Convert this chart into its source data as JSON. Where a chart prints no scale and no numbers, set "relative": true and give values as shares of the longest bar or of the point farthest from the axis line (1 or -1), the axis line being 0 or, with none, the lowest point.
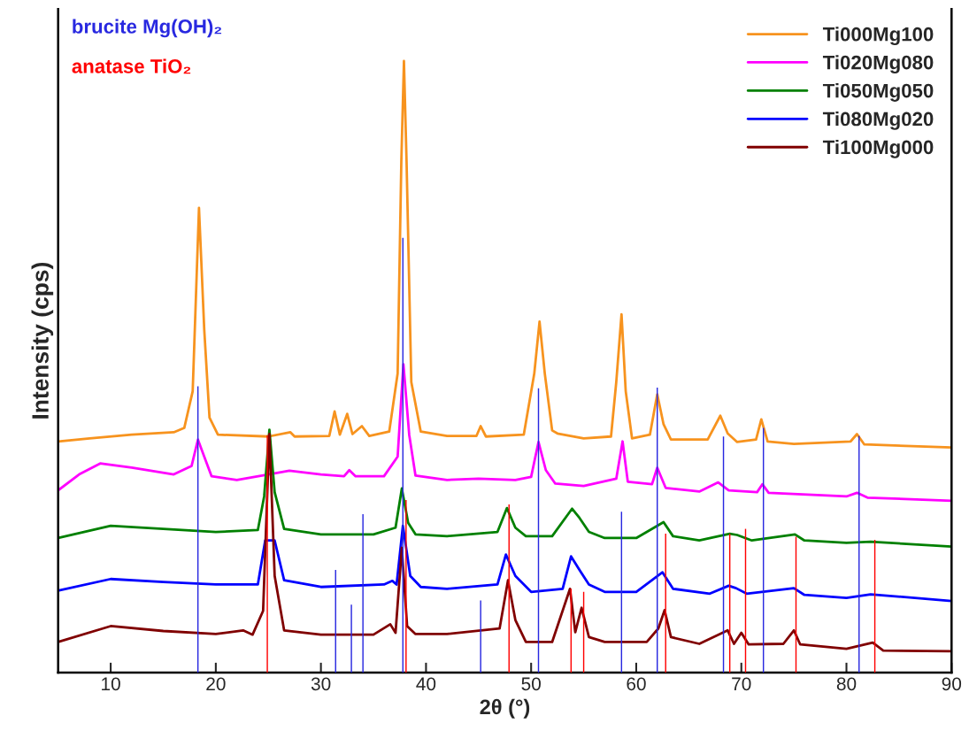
{
  "chart_data": {
    "type": "line",
    "xlabel": "2θ (°)",
    "ylabel": "Intensity (cps)",
    "relative": true,
    "xlim": [
      5,
      90
    ],
    "xticks": [
      10,
      20,
      30,
      40,
      50,
      60,
      70,
      80,
      90
    ],
    "legend": "top right",
    "grid": false,
    "tick_labels": "x",
    "series": [
      {
        "name": "Ti000Mg100",
        "color": "#f7931e",
        "x": [
          5,
          8,
          12,
          16,
          17,
          17.8,
          18.4,
          18.9,
          19.4,
          20.2,
          25,
          27.1,
          27.5,
          30.8,
          31.3,
          31.8,
          32.5,
          33,
          33.9,
          34.6,
          36.5,
          37.3,
          37.65,
          37.9,
          38.15,
          38.6,
          39.5,
          42,
          44.8,
          45.2,
          45.7,
          49.3,
          50.3,
          50.8,
          51.3,
          52,
          52.5,
          55,
          57.6,
          58.1,
          58.6,
          59.0,
          59.6,
          61.3,
          62.0,
          62.6,
          63.3,
          66.8,
          68.0,
          68.7,
          69.6,
          71.4,
          71.9,
          72.5,
          75,
          80.4,
          81.0,
          81.7,
          90
        ],
        "values": [
          0.378,
          0.383,
          0.389,
          0.393,
          0.4,
          0.46,
          0.76,
          0.561,
          0.417,
          0.389,
          0.386,
          0.393,
          0.386,
          0.387,
          0.427,
          0.389,
          0.423,
          0.39,
          0.403,
          0.387,
          0.394,
          0.489,
          0.835,
          1.0,
          0.835,
          0.475,
          0.394,
          0.387,
          0.387,
          0.403,
          0.386,
          0.389,
          0.489,
          0.574,
          0.489,
          0.396,
          0.391,
          0.383,
          0.386,
          0.475,
          0.586,
          0.46,
          0.383,
          0.389,
          0.455,
          0.406,
          0.381,
          0.381,
          0.42,
          0.391,
          0.377,
          0.381,
          0.414,
          0.378,
          0.374,
          0.378,
          0.39,
          0.373,
          0.368
        ]
      },
      {
        "name": "Ti020Mg080",
        "color": "#ff00ff",
        "x": [
          5,
          7,
          9,
          12,
          16,
          17.7,
          18.3,
          18.9,
          19.6,
          22,
          25,
          27,
          30,
          32.2,
          32.7,
          33.3,
          36,
          37.3,
          37.85,
          38.4,
          39,
          42,
          45,
          48.5,
          50,
          50.7,
          51.4,
          52.3,
          55,
          58.1,
          58.7,
          59.2,
          61.5,
          62.0,
          62.8,
          66,
          67.8,
          68.8,
          71.5,
          72.0,
          72.6,
          80,
          81.0,
          82,
          90
        ],
        "values": [
          0.298,
          0.324,
          0.342,
          0.335,
          0.324,
          0.338,
          0.381,
          0.353,
          0.321,
          0.315,
          0.324,
          0.33,
          0.324,
          0.321,
          0.331,
          0.321,
          0.321,
          0.353,
          0.504,
          0.389,
          0.322,
          0.315,
          0.317,
          0.315,
          0.32,
          0.377,
          0.331,
          0.309,
          0.305,
          0.317,
          0.378,
          0.312,
          0.308,
          0.335,
          0.302,
          0.296,
          0.311,
          0.298,
          0.295,
          0.308,
          0.294,
          0.288,
          0.294,
          0.286,
          0.281
        ]
      },
      {
        "name": "Ti050Mg050",
        "color": "#008000",
        "x": [
          5,
          10,
          15,
          20,
          24,
          24.6,
          25.1,
          25.6,
          26.5,
          30,
          35,
          37.1,
          37.7,
          38.3,
          39,
          42,
          46.8,
          47.7,
          48.5,
          49.5,
          52,
          53.9,
          54.6,
          55.5,
          57,
          60,
          62.6,
          63.5,
          66,
          68.9,
          69.6,
          71,
          75.1,
          76,
          80,
          82.3,
          90
        ],
        "values": [
          0.22,
          0.24,
          0.235,
          0.23,
          0.233,
          0.288,
          0.397,
          0.295,
          0.235,
          0.226,
          0.226,
          0.237,
          0.301,
          0.245,
          0.226,
          0.223,
          0.23,
          0.269,
          0.237,
          0.223,
          0.223,
          0.268,
          0.253,
          0.23,
          0.22,
          0.22,
          0.246,
          0.223,
          0.216,
          0.227,
          0.225,
          0.216,
          0.226,
          0.216,
          0.212,
          0.214,
          0.206
        ]
      },
      {
        "name": "Ti080Mg020",
        "color": "#0000ff",
        "x": [
          5,
          10,
          15,
          20,
          24,
          24.7,
          25.1,
          25.6,
          26.5,
          30,
          36,
          36.8,
          37.2,
          37.8,
          38.5,
          39.5,
          42,
          46.8,
          47.6,
          48.5,
          50,
          53,
          53.8,
          54.6,
          55.5,
          57,
          60,
          62.5,
          63.5,
          67,
          68.8,
          69.5,
          70.5,
          75,
          76,
          80,
          82.3,
          90
        ],
        "values": [
          0.134,
          0.153,
          0.148,
          0.144,
          0.144,
          0.216,
          null,
          0.216,
          0.151,
          0.14,
          0.144,
          0.15,
          0.144,
          0.24,
          0.158,
          0.14,
          0.137,
          0.144,
          0.193,
          0.158,
          0.132,
          0.137,
          0.19,
          0.168,
          0.144,
          0.132,
          0.132,
          0.164,
          0.137,
          0.129,
          0.142,
          0.138,
          0.129,
          0.138,
          0.127,
          0.122,
          0.128,
          0.117
        ]
      },
      {
        "name": "Ti100Mg000",
        "color": "#800000",
        "x": [
          5,
          10,
          15,
          20,
          22.6,
          23.5,
          24.5,
          25.1,
          25.6,
          26.5,
          30,
          35,
          36.6,
          37.1,
          37.7,
          38.2,
          39,
          42,
          47,
          47.8,
          48.5,
          49.5,
          52,
          53.7,
          54.2,
          54.8,
          55.5,
          57,
          61,
          62.1,
          62.7,
          63.3,
          66,
          68.7,
          69.3,
          70,
          70.7,
          74,
          75,
          75.6,
          80,
          82.5,
          83.5,
          90
        ],
        "values": [
          0.05,
          0.076,
          0.068,
          0.063,
          0.069,
          0.062,
          0.101,
          0.39,
          0.158,
          0.069,
          0.062,
          0.062,
          0.079,
          0.065,
          0.204,
          0.076,
          0.063,
          0.063,
          0.072,
          0.151,
          0.086,
          0.05,
          0.05,
          0.137,
          0.066,
          0.106,
          0.058,
          0.05,
          0.05,
          0.072,
          0.102,
          0.058,
          0.047,
          0.069,
          0.047,
          0.065,
          0.046,
          0.047,
          0.069,
          0.046,
          0.039,
          0.049,
          0.036,
          0.035
        ]
      },
      {
        "name": "brucite Mg(OH)₂",
        "color": "#2828e0",
        "type": "bar",
        "x": [
          18.3,
          31.4,
          32.9,
          34.0,
          37.8,
          45.2,
          50.7,
          58.6,
          62.0,
          68.3,
          72.1,
          81.2
        ],
        "values": [
          0.468,
          0.168,
          0.111,
          0.259,
          0.711,
          0.118,
          0.465,
          0.263,
          0.466,
          0.386,
          0.4,
          0.387
        ]
      },
      {
        "name": "anatase TiO₂",
        "color": "#ff0000",
        "type": "bar",
        "x": [
          24.9,
          38.1,
          47.9,
          53.8,
          55.0,
          62.8,
          68.9,
          70.4,
          75.2,
          82.7
        ],
        "values": [
          0.388,
          0.282,
          0.275,
          0.137,
          0.132,
          0.227,
          0.227,
          0.235,
          0.222,
          0.217
        ]
      }
    ]
  }
}
